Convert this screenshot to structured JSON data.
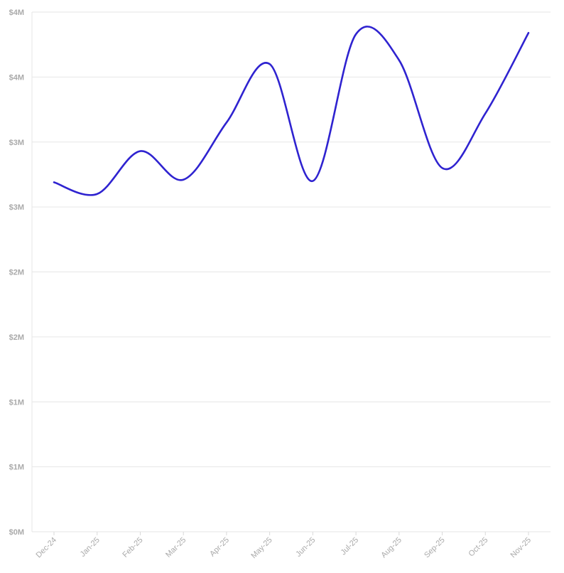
{
  "chart_data": {
    "type": "line",
    "title": "",
    "xlabel": "",
    "ylabel": "",
    "categories": [
      "Dec-24",
      "Jan-25",
      "Feb-25",
      "Mar-25",
      "Apr-25",
      "May-25",
      "Jun-25",
      "Jul-25",
      "Aug-25",
      "Sep-25",
      "Oct-25",
      "Nov-25"
    ],
    "y_tick_labels": [
      "$0M",
      "$1M",
      "$1M",
      "$2M",
      "$2M",
      "$3M",
      "$3M",
      "$4M",
      "$4M"
    ],
    "ylim": [
      0,
      4
    ],
    "grid": true,
    "legend": "none",
    "series": [
      {
        "values": [
          2.69,
          2.6,
          2.93,
          2.71,
          3.15,
          3.6,
          2.7,
          3.83,
          3.63,
          2.8,
          3.22,
          3.84
        ],
        "color": "#2f23d0"
      }
    ]
  },
  "colors": {
    "grid": "#e6e6e6",
    "tick_label": "#aaaaaa"
  }
}
